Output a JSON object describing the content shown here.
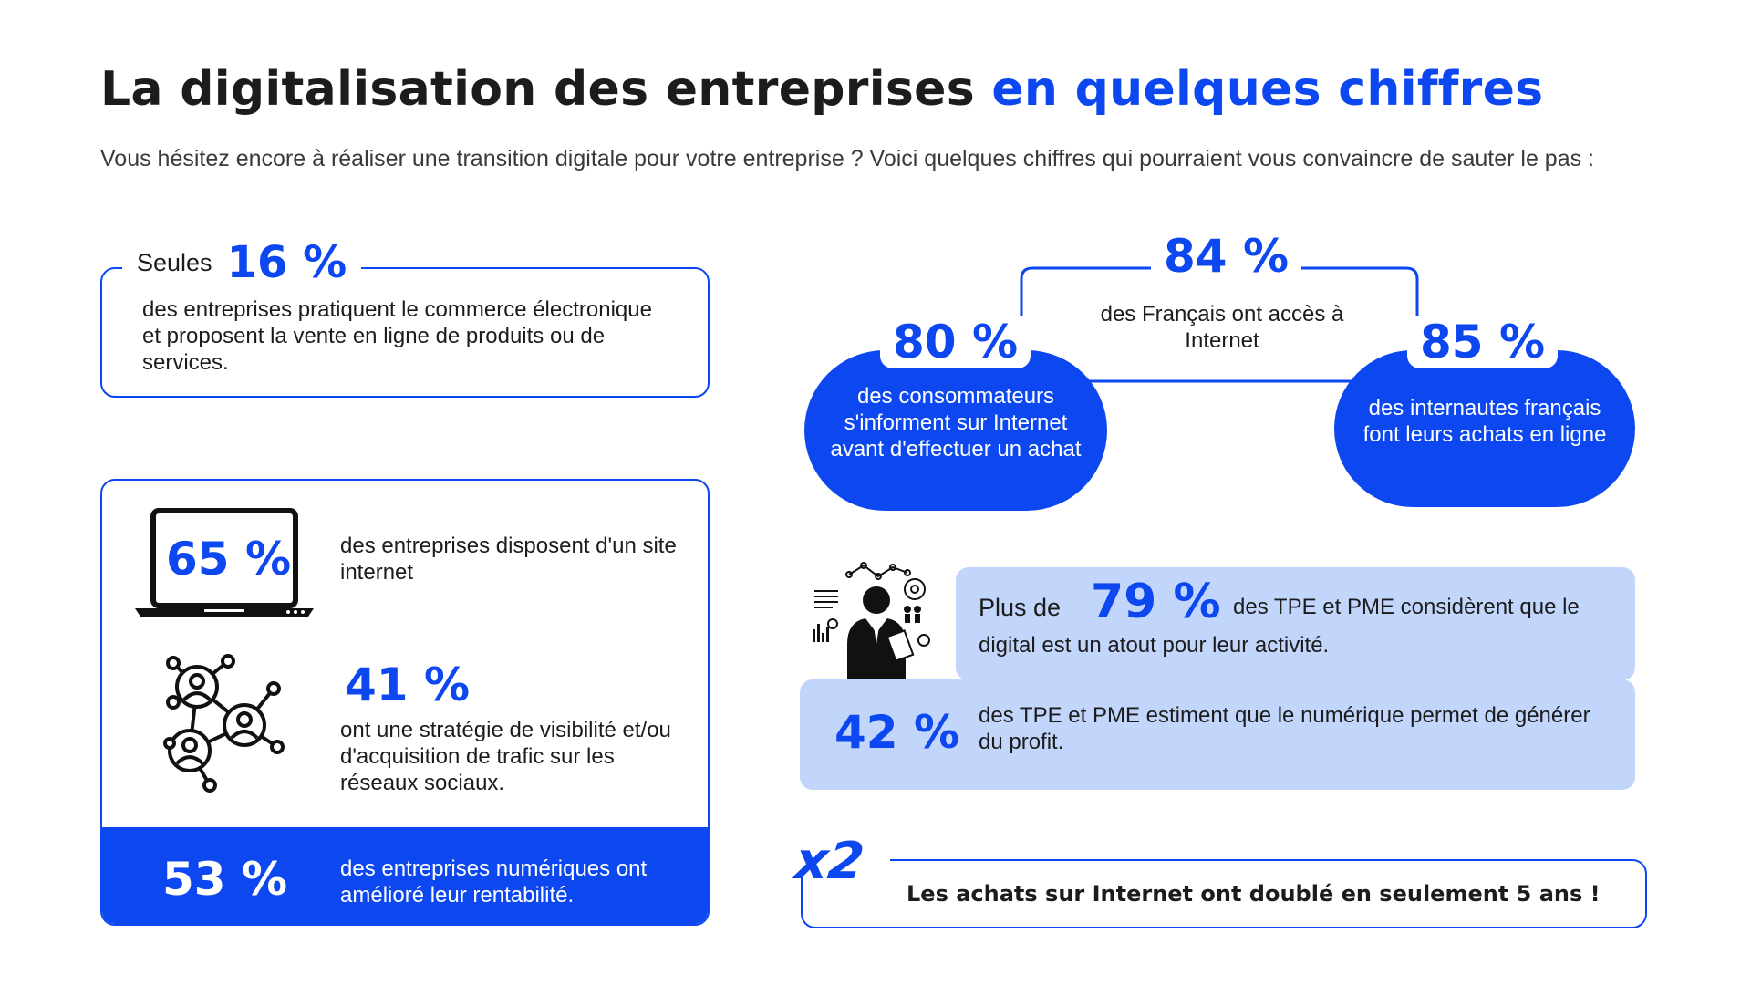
{
  "header": {
    "title_part1": "La digitalisation des entreprises",
    "title_part2": "en quelques chiffres",
    "subtitle": "Vous hésitez encore à réaliser une transition digitale pour votre entreprise ? Voici quelques chiffres qui pourraient vous convaincre de sauter le pas :"
  },
  "colors": {
    "accent": "#0c47f0",
    "light_panel": "#c2d5fb",
    "text": "#1c1c1c"
  },
  "stat16": {
    "prefix": "Seules",
    "value": "16 %",
    "text": "des entreprises pratiquent le commerce électronique et proposent la vente en ligne de produits ou de services."
  },
  "stat65": {
    "value": "65 %",
    "text": "des entreprises disposent d'un site internet",
    "icon": "laptop-icon"
  },
  "stat41": {
    "value": "41 %",
    "text": "ont une stratégie de visibilité et/ou d'acquisition de trafic sur les réseaux sociaux.",
    "icon": "social-network-icon"
  },
  "stat53": {
    "value": "53 %",
    "text": "des entreprises numériques ont amélioré leur rentabilité."
  },
  "stat84": {
    "value": "84 %",
    "text": "des Français ont accès à Internet"
  },
  "stat80": {
    "value": "80 %",
    "text": "des consommateurs s'informent sur Internet avant d'effectuer un achat"
  },
  "stat85": {
    "value": "85 %",
    "text": "des internautes français font leurs achats en ligne"
  },
  "stat79": {
    "prefix": "Plus de",
    "value": "79 %",
    "text_line1": "des TPE et PME considèrent que le",
    "text_line2": "digital est un atout pour leur activité.",
    "icon": "business-analyst-icon"
  },
  "stat42": {
    "value": "42 %",
    "text": "des TPE et PME estiment que le numérique permet de générer du profit."
  },
  "statx2": {
    "value": "x2",
    "text": "Les achats sur Internet ont doublé en seulement 5 ans !"
  }
}
